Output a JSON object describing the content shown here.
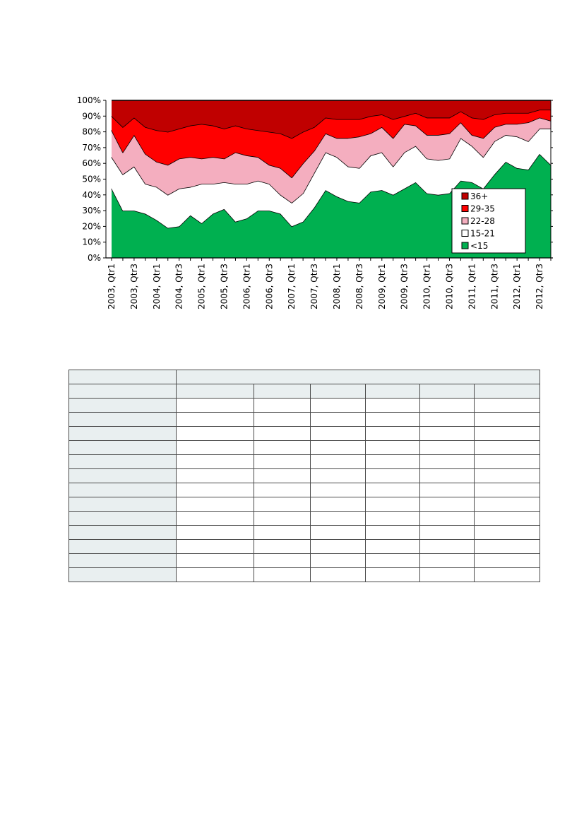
{
  "chart_data": {
    "type": "area",
    "stacked": true,
    "percent": true,
    "categories": [
      "2003, Qtr1",
      "2003, Qtr2",
      "2003, Qtr3",
      "2003, Qtr4",
      "2004, Qtr1",
      "2004, Qtr2",
      "2004, Qtr3",
      "2004, Qtr4",
      "2005, Qtr1",
      "2005, Qtr2",
      "2005, Qtr3",
      "2005, Qtr4",
      "2006, Qtr1",
      "2006, Qtr2",
      "2006, Qtr3",
      "2006, Qtr4",
      "2007, Qtr1",
      "2007, Qtr2",
      "2007, Qtr3",
      "2007, Qtr4",
      "2008, Qtr1",
      "2008, Qtr2",
      "2008, Qtr3",
      "2008, Qtr4",
      "2009, Qtr1",
      "2009, Qtr2",
      "2009, Qtr3",
      "2009, Qtr4",
      "2010, Qtr1",
      "2010, Qtr2",
      "2010, Qtr3",
      "2010, Qtr4",
      "2011, Qtr1",
      "2011, Qtr2",
      "2011, Qtr3",
      "2011, Qtr4",
      "2012, Qtr1",
      "2012, Qtr2",
      "2012, Qtr3",
      "2012, Qtr4"
    ],
    "tick_labels": [
      "2003, Qtr1",
      "2003, Qtr3",
      "2004, Qtr1",
      "2004, Qtr3",
      "2005, Qtr1",
      "2005, Qtr3",
      "2006, Qtr1",
      "2006, Qtr3",
      "2007, Qtr1",
      "2007, Qtr3",
      "2008, Qtr1",
      "2008, Qtr3",
      "2009, Qtr1",
      "2009, Qtr3",
      "2010, Qtr1",
      "2010, Qtr3",
      "2011, Qtr1",
      "2011, Qtr3",
      "2012, Qtr1",
      "2012, Qtr3"
    ],
    "y_ticks": [
      "0%",
      "10%",
      "20%",
      "30%",
      "40%",
      "50%",
      "60%",
      "70%",
      "80%",
      "90%",
      "100%"
    ],
    "ylim": [
      0,
      100
    ],
    "series": [
      {
        "name": "<15",
        "color": "#00b050",
        "values": [
          44,
          30,
          30,
          28,
          24,
          19,
          20,
          27,
          22,
          28,
          31,
          23,
          25,
          30,
          30,
          28,
          20,
          23,
          32,
          43,
          39,
          36,
          35,
          42,
          43,
          40,
          44,
          48,
          41,
          40,
          41,
          49,
          48,
          44,
          53,
          61,
          57,
          56,
          66,
          59
        ]
      },
      {
        "name": "15-21",
        "color": "#ffffff",
        "values": [
          20,
          23,
          28,
          19,
          21,
          21,
          24,
          18,
          25,
          19,
          17,
          24,
          22,
          19,
          17,
          12,
          15,
          18,
          22,
          24,
          25,
          22,
          22,
          23,
          24,
          18,
          23,
          23,
          22,
          22,
          22,
          27,
          23,
          20,
          21,
          17,
          20,
          18,
          16,
          23
        ]
      },
      {
        "name": "22-28",
        "color": "#f4aebf",
        "values": [
          17,
          14,
          20,
          19,
          16,
          19,
          19,
          19,
          16,
          17,
          15,
          20,
          18,
          15,
          12,
          17,
          16,
          19,
          14,
          12,
          12,
          18,
          20,
          14,
          16,
          18,
          18,
          13,
          15,
          16,
          16,
          10,
          7,
          12,
          9,
          7,
          8,
          12,
          7,
          5
        ]
      },
      {
        "name": "29-35",
        "color": "#ff0000",
        "values": [
          9,
          16,
          11,
          17,
          20,
          21,
          19,
          20,
          22,
          20,
          19,
          17,
          17,
          17,
          21,
          22,
          25,
          20,
          15,
          10,
          12,
          12,
          11,
          11,
          8,
          12,
          5,
          8,
          11,
          11,
          10,
          7,
          11,
          12,
          8,
          7,
          7,
          6,
          5,
          7
        ]
      },
      {
        "name": "36+",
        "color": "#c00000",
        "values": [
          10,
          17,
          11,
          17,
          19,
          20,
          18,
          16,
          15,
          16,
          18,
          16,
          18,
          19,
          20,
          21,
          24,
          20,
          17,
          11,
          12,
          12,
          12,
          10,
          9,
          12,
          10,
          8,
          11,
          11,
          11,
          7,
          11,
          12,
          9,
          8,
          8,
          8,
          6,
          6
        ]
      }
    ],
    "legend_order": [
      "36+",
      "29-35",
      "22-28",
      "15-21",
      "<15"
    ],
    "legend_position": "bottom-right inside plot",
    "grid": false
  },
  "table": {
    "header_rows": 2,
    "columns": 7,
    "body_rows": 13
  }
}
